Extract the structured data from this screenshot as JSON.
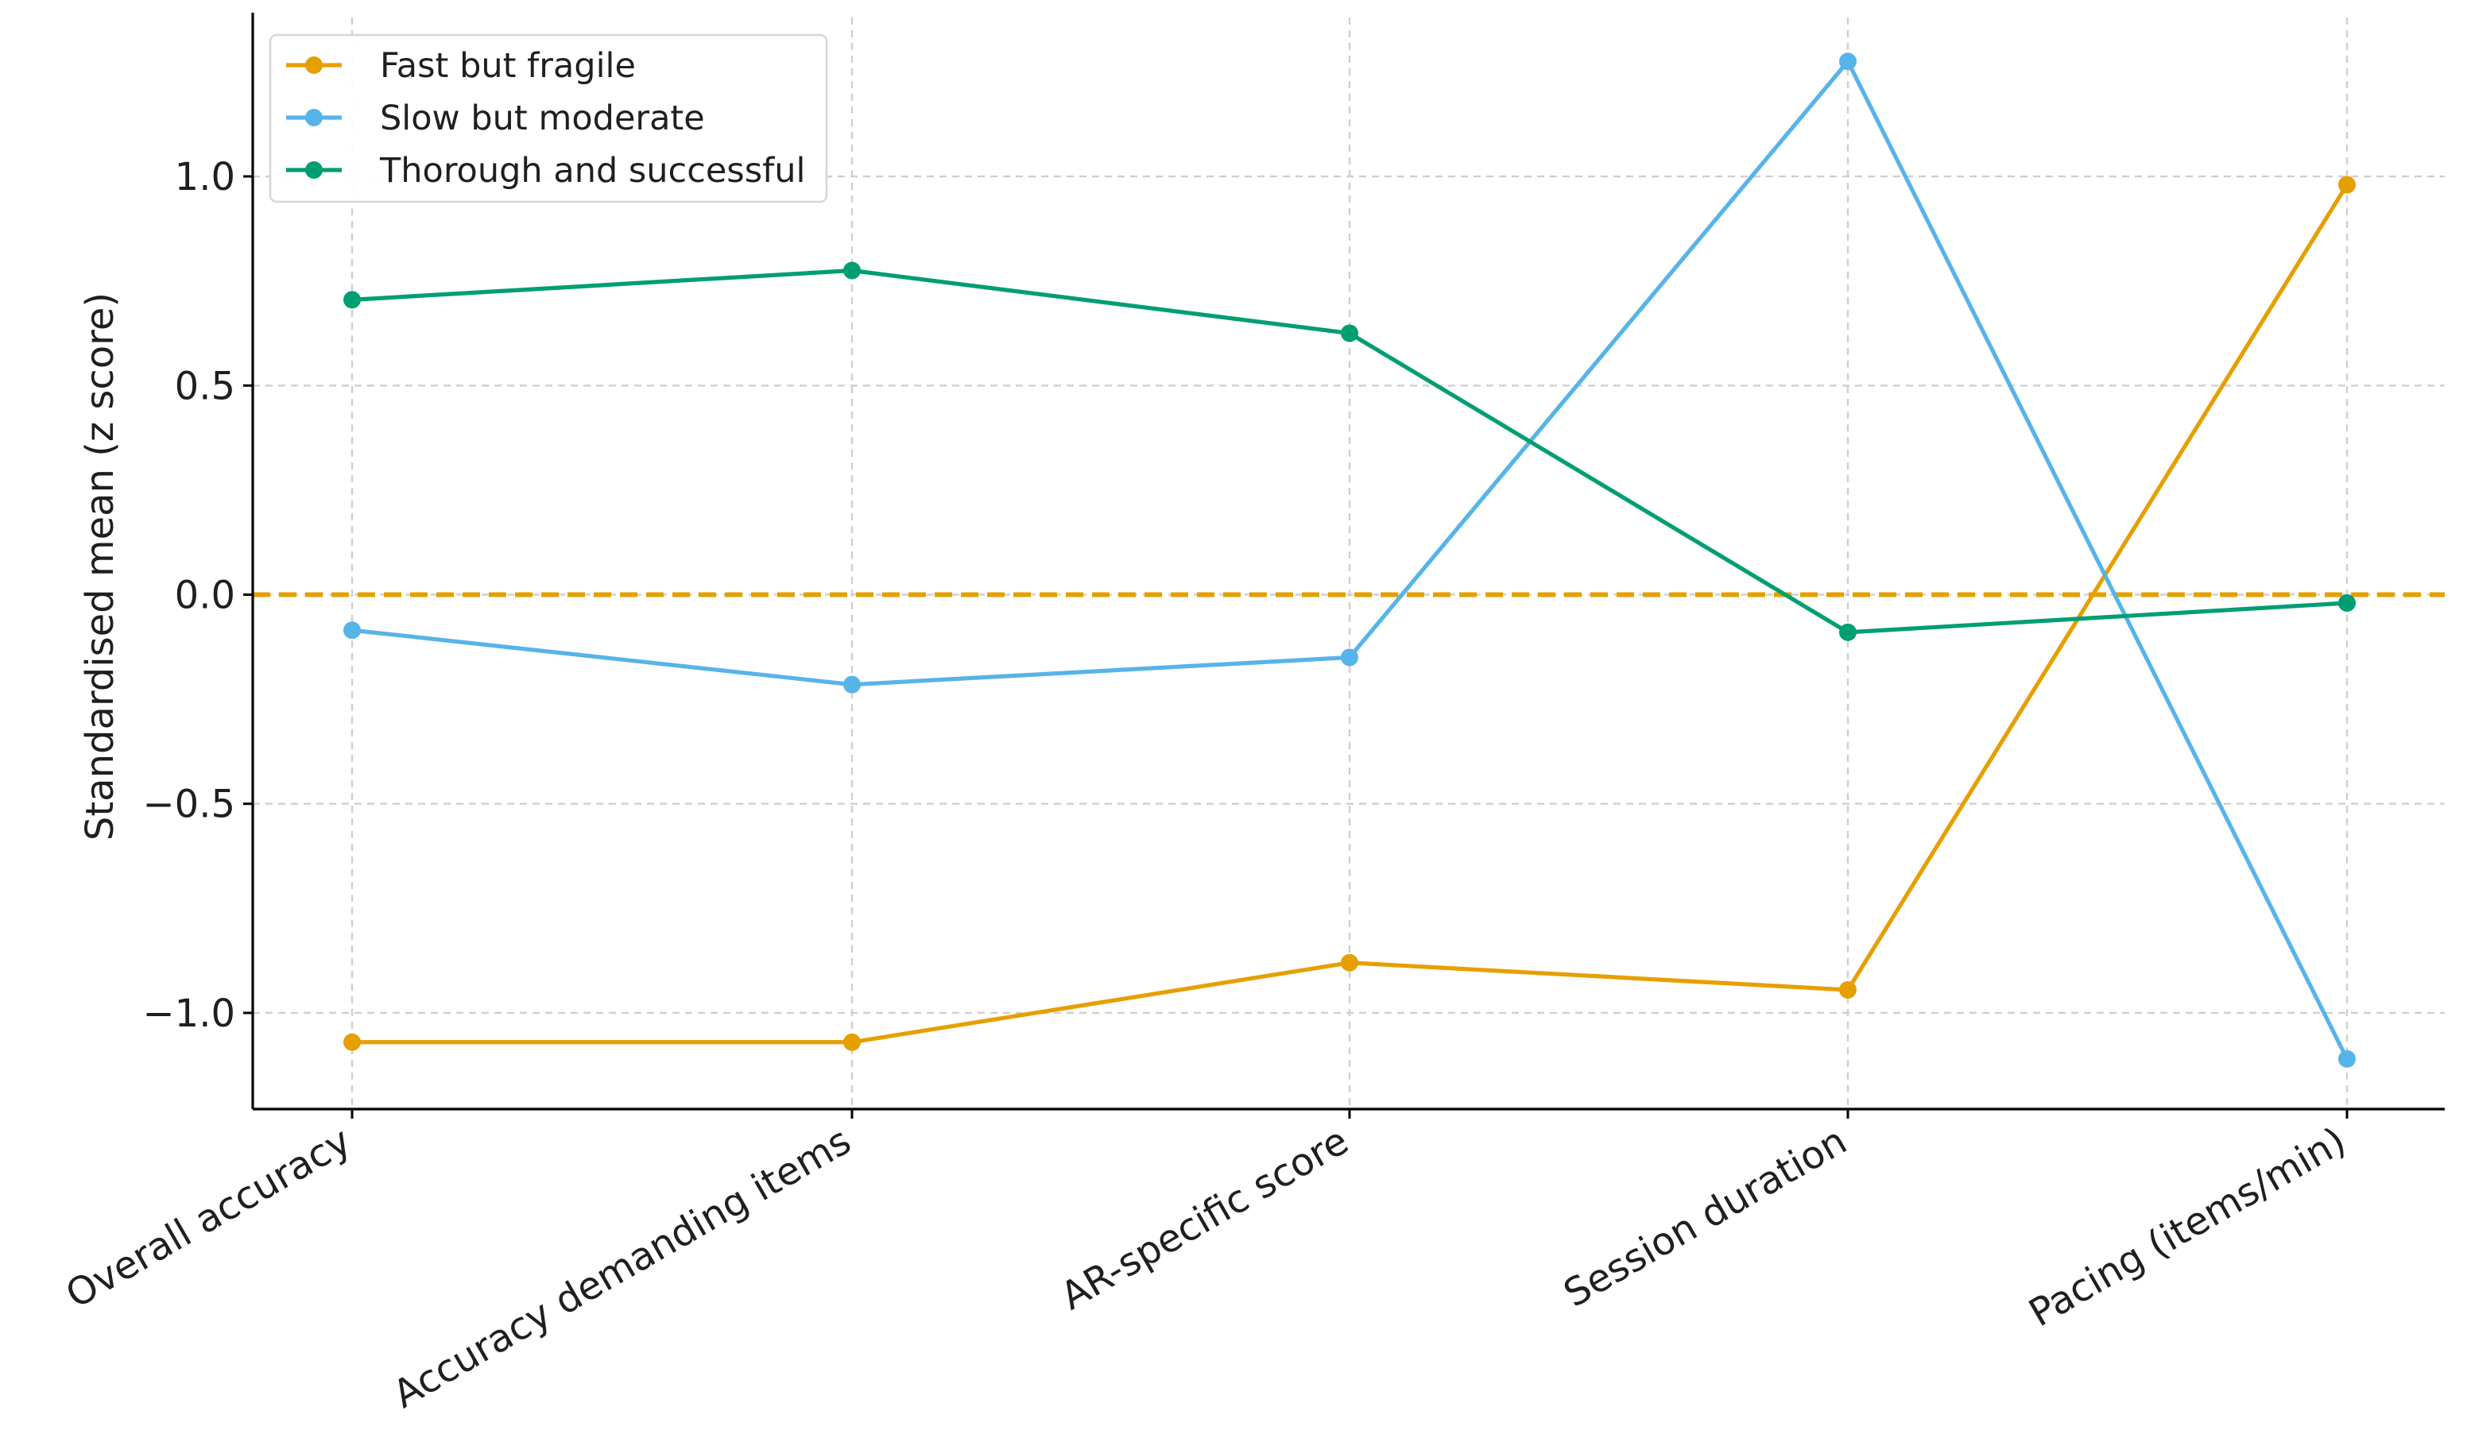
{
  "chart_data": {
    "type": "line",
    "title": "",
    "xlabel": "",
    "ylabel": "Standardised mean (z score)",
    "categories": [
      "Overall accuracy",
      "Accuracy demanding items",
      "AR-specific score",
      "Session duration",
      "Pacing (items/min)"
    ],
    "ylim": [
      -1.23,
      1.38
    ],
    "yticks": [
      -1.0,
      -0.5,
      0.0,
      0.5,
      1.0
    ],
    "ytick_labels": [
      "−1.0",
      "−0.5",
      "0.0",
      "0.5",
      "1.0"
    ],
    "grid": true,
    "legend_position": "top-left",
    "reference_line": {
      "y": 0.0,
      "style": "dashed",
      "color": "#E69F00"
    },
    "series": [
      {
        "name": "Fast but fragile",
        "color": "#E69F00",
        "values": [
          -1.07,
          -1.07,
          -0.88,
          -0.945,
          0.98
        ]
      },
      {
        "name": "Slow but moderate",
        "color": "#56B4E9",
        "values": [
          -0.085,
          -0.215,
          -0.15,
          1.275,
          -1.11
        ]
      },
      {
        "name": "Thorough and successful",
        "color": "#009E73",
        "values": [
          0.705,
          0.775,
          0.625,
          -0.09,
          -0.02
        ]
      }
    ]
  }
}
